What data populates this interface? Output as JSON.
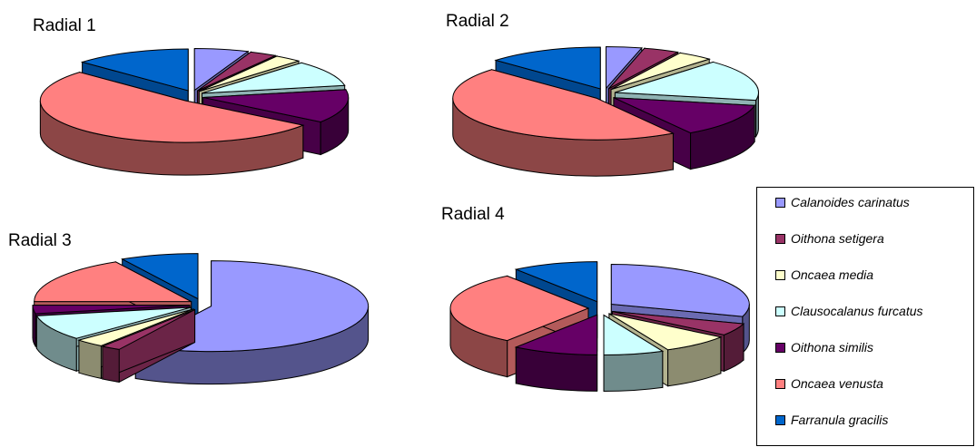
{
  "chart_data": [
    {
      "type": "pie",
      "title": "Radial 1",
      "categories": [
        "Calanoides carinatus",
        "Oithona setigera",
        "Oncaea media",
        "Clausocalanus furcatus",
        "Oithona similis",
        "Oncaea venusta",
        "Farranula gracilis"
      ],
      "values": [
        6,
        3,
        3,
        10,
        13,
        52,
        13
      ],
      "exploded": [
        true,
        true,
        true,
        true,
        true,
        true,
        true
      ],
      "three_d": true
    },
    {
      "type": "pie",
      "title": "Radial 2",
      "categories": [
        "Calanoides carinatus",
        "Oithona setigera",
        "Oncaea media",
        "Clausocalanus furcatus",
        "Oithona similis",
        "Oncaea venusta",
        "Farranula gracilis"
      ],
      "values": [
        4,
        4,
        4,
        16,
        13,
        46,
        13
      ],
      "exploded": [
        true,
        true,
        true,
        true,
        true,
        true,
        true
      ],
      "three_d": true
    },
    {
      "type": "pie",
      "title": "Radial 3",
      "categories": [
        "Calanoides carinatus",
        "Oithona setigera",
        "Oncaea media",
        "Clausocalanus furcatus",
        "Oithona similis",
        "Oncaea venusta",
        "Farranula gracilis"
      ],
      "values": [
        58,
        2,
        3,
        9,
        3,
        17,
        8
      ],
      "exploded": [
        true,
        true,
        true,
        true,
        true,
        true,
        true
      ],
      "three_d": true
    },
    {
      "type": "pie",
      "title": "Radial 4",
      "categories": [
        "Calanoides carinatus",
        "Oithona setigera",
        "Oncaea media",
        "Clausocalanus furcatus",
        "Oithona similis",
        "Oncaea venusta",
        "Farranula gracilis"
      ],
      "values": [
        30,
        5,
        8,
        7,
        10,
        30,
        10
      ],
      "exploded": [
        true,
        true,
        true,
        true,
        true,
        true,
        true
      ],
      "three_d": true
    }
  ],
  "legend": {
    "placement": "bottom-right",
    "entries": [
      {
        "name": "Calanoides carinatus",
        "color": "#9999FF"
      },
      {
        "name": "Oithona setigera",
        "color": "#993366"
      },
      {
        "name": "Oncaea media",
        "color": "#FFFFCC"
      },
      {
        "name": "Clausocalanus furcatus",
        "color": "#CCFFFF"
      },
      {
        "name": "Oithona similis",
        "color": "#660066"
      },
      {
        "name": "Oncaea venusta",
        "color": "#FF8080"
      },
      {
        "name": "Farranula gracilis",
        "color": "#0066CC"
      }
    ]
  }
}
